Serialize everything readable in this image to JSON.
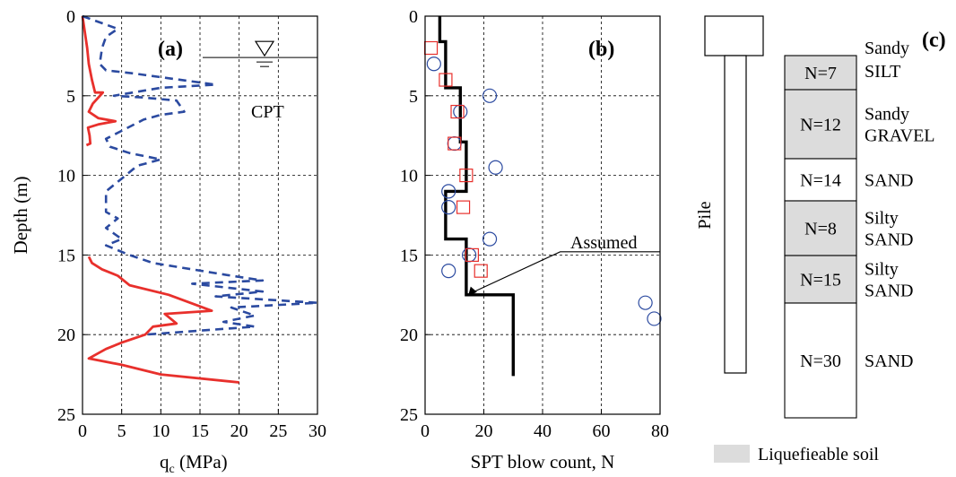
{
  "chart_data": [
    {
      "panel": "(a)",
      "type": "line",
      "xlabel_main": "q",
      "xlabel_sub": "c",
      "xlabel_rest": " (MPa)",
      "ylabel": "Depth (m)",
      "xlim": [
        0,
        30
      ],
      "ylim": [
        0,
        25
      ],
      "xticks": [
        0,
        5,
        10,
        15,
        20,
        25,
        30
      ],
      "yticks": [
        0,
        5,
        10,
        15,
        20,
        25
      ],
      "y_inverted": true,
      "grid": true,
      "annotations": [
        "CPT"
      ],
      "water_table_depth": 2.6,
      "series": [
        {
          "color": "#e8302c",
          "style": "solid",
          "points": [
            [
              0,
              0
            ],
            [
              0.3,
              1
            ],
            [
              0.6,
              2
            ],
            [
              0.8,
              3
            ],
            [
              1.2,
              4
            ],
            [
              1.6,
              4.8
            ],
            [
              2.6,
              4.8
            ],
            [
              1.3,
              5.5
            ],
            [
              0.8,
              6
            ],
            [
              2.0,
              6.4
            ],
            [
              4.2,
              6.6
            ],
            [
              2.0,
              6.8
            ],
            [
              0.7,
              7
            ],
            [
              0.9,
              7.5
            ],
            [
              1.0,
              8
            ],
            [
              0.5,
              8.1
            ]
          ]
        },
        {
          "color": "#2b4aa0",
          "style": "dashed",
          "points": [
            [
              0,
              0
            ],
            [
              4.5,
              0.8
            ],
            [
              3.0,
              1.3
            ],
            [
              2.5,
              2
            ],
            [
              2.2,
              3.0
            ],
            [
              3.0,
              3.4
            ],
            [
              6.5,
              3.6
            ],
            [
              17.0,
              4.3
            ],
            [
              10.0,
              4.5
            ],
            [
              4.0,
              5
            ],
            [
              7.5,
              5.1
            ],
            [
              12.0,
              5.3
            ],
            [
              13.0,
              6.0
            ],
            [
              10.0,
              6.2
            ],
            [
              7.8,
              6.5
            ],
            [
              5.0,
              7.2
            ],
            [
              3.0,
              7.7
            ],
            [
              3.5,
              8.2
            ],
            [
              6.0,
              8.6
            ],
            [
              10.0,
              9.0
            ],
            [
              7.0,
              9.4
            ],
            [
              5.0,
              10.2
            ],
            [
              3.0,
              11.0
            ],
            [
              3.0,
              12.3
            ],
            [
              4.5,
              12.7
            ],
            [
              3.0,
              13.3
            ],
            [
              5.0,
              14.0
            ],
            [
              3.0,
              14.4
            ],
            [
              6.0,
              15.0
            ],
            [
              9.0,
              15.5
            ],
            [
              19.0,
              16.3
            ],
            [
              23.0,
              16.6
            ],
            [
              14.0,
              16.8
            ],
            [
              23.0,
              17.3
            ],
            [
              17.0,
              17.6
            ],
            [
              30,
              18.0
            ],
            [
              19.0,
              18.3
            ],
            [
              22.0,
              18.8
            ],
            [
              18.0,
              19.2
            ],
            [
              22.0,
              19.5
            ],
            [
              8.0,
              20.0
            ]
          ]
        },
        {
          "color": "#e8302c",
          "style": "solid",
          "points": [
            [
              0.8,
              15.1
            ],
            [
              1.2,
              15.5
            ],
            [
              2.5,
              15.9
            ],
            [
              4.5,
              16.3
            ],
            [
              5.0,
              16.5
            ],
            [
              6.0,
              16.9
            ],
            [
              11.0,
              17.5
            ],
            [
              16.5,
              18.5
            ],
            [
              10.5,
              18.7
            ],
            [
              12.0,
              19.3
            ],
            [
              9.0,
              19.5
            ],
            [
              8.0,
              20.0
            ],
            [
              5.0,
              20.5
            ],
            [
              3.0,
              20.9
            ],
            [
              0.8,
              21.5
            ],
            [
              5.0,
              21.9
            ],
            [
              10.0,
              22.5
            ],
            [
              20.0,
              23.0
            ]
          ]
        }
      ]
    },
    {
      "panel": "(b)",
      "type": "scatter",
      "xlabel": "SPT blow count, N",
      "xlim": [
        0,
        80
      ],
      "ylim": [
        0,
        25
      ],
      "xticks": [
        0,
        20,
        40,
        60,
        80
      ],
      "yticks": [
        0,
        5,
        10,
        15,
        20,
        25
      ],
      "y_inverted": true,
      "grid": true,
      "annotations": [
        "Assumed"
      ],
      "circles": [
        [
          3,
          3
        ],
        [
          22,
          5
        ],
        [
          12,
          6
        ],
        [
          10,
          8
        ],
        [
          24,
          9.5
        ],
        [
          8,
          11
        ],
        [
          8,
          12
        ],
        [
          22,
          14
        ],
        [
          15,
          15
        ],
        [
          8,
          16
        ],
        [
          75,
          18
        ],
        [
          78,
          19
        ]
      ],
      "squares": [
        [
          2,
          2
        ],
        [
          7,
          4
        ],
        [
          11,
          6
        ],
        [
          10,
          8
        ],
        [
          14,
          10
        ],
        [
          13,
          12
        ],
        [
          16,
          15
        ],
        [
          19,
          16
        ]
      ],
      "assumed_profile": [
        [
          5,
          0
        ],
        [
          5,
          1.6
        ],
        [
          7,
          1.6
        ],
        [
          7,
          4.5
        ],
        [
          12,
          4.5
        ],
        [
          12,
          7.9
        ],
        [
          14,
          7.9
        ],
        [
          14,
          11
        ],
        [
          7,
          11
        ],
        [
          7,
          14
        ],
        [
          14,
          14
        ],
        [
          14,
          17.5
        ],
        [
          30,
          17.5
        ],
        [
          30,
          22.6
        ]
      ]
    }
  ],
  "panel_c": {
    "label": "(c)",
    "pile_label": "Pile",
    "layers": [
      {
        "n_label": "N=7",
        "soil": [
          "Sandy",
          "SILT"
        ],
        "liquefiable": true
      },
      {
        "n_label": "N=12",
        "soil": [
          "Sandy",
          "GRAVEL"
        ],
        "liquefiable": true
      },
      {
        "n_label": "N=14",
        "soil": [
          "SAND"
        ],
        "liquefiable": false
      },
      {
        "n_label": "N=8",
        "soil": [
          "Silty",
          "SAND"
        ],
        "liquefiable": true
      },
      {
        "n_label": "N=15",
        "soil": [
          "Silty",
          "SAND"
        ],
        "liquefiable": true
      },
      {
        "n_label": "N=30",
        "soil": [
          "SAND"
        ],
        "liquefiable": false
      }
    ],
    "legend_label": "Liquefieable soil",
    "fill_color": "#dcdcdc"
  }
}
